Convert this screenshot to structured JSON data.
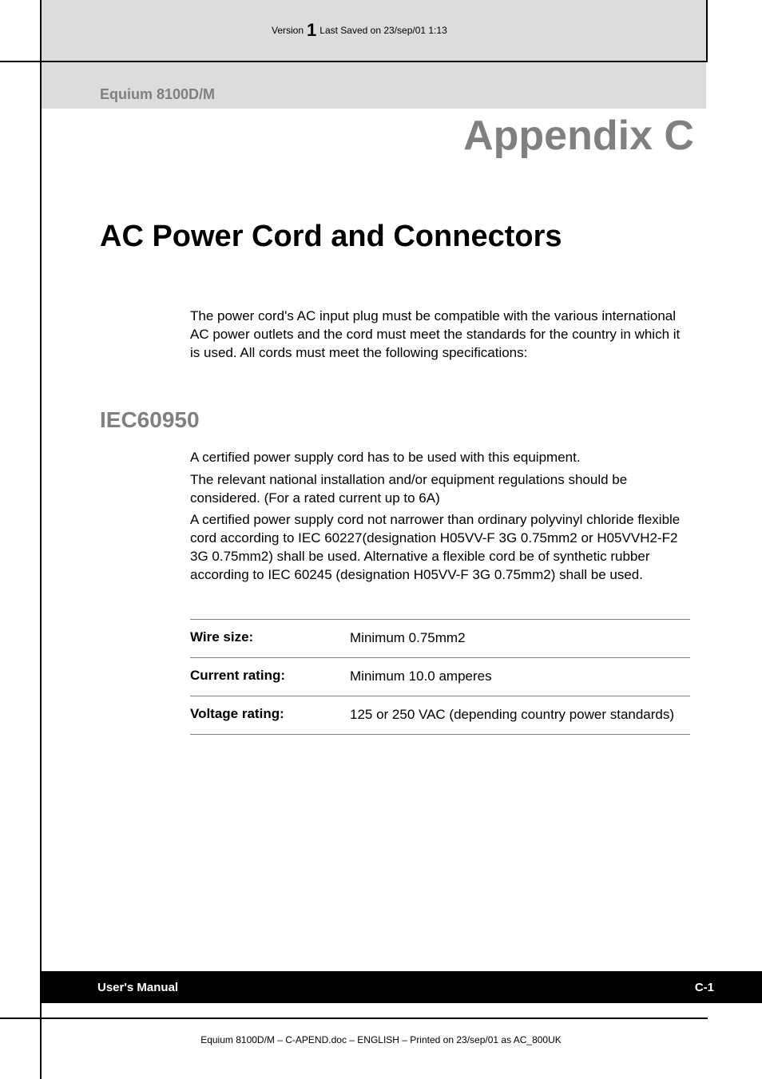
{
  "header": {
    "version_prefix": "Version",
    "version_number": "1",
    "last_saved": "Last Saved on 23/sep/01 1:13",
    "product_name": "Equium 8100D/M",
    "appendix_label": "Appendix C"
  },
  "main": {
    "title": "AC Power Cord and Connectors",
    "intro": "The power cord's AC input plug must be compatible with the various international AC power outlets and the cord must meet the standards for the country in which it is used. All cords must meet the following specifications:",
    "section_heading": "IEC60950",
    "para1": "A certified power supply cord has to be used with this equipment.",
    "para2": "The relevant national installation and/or equipment regulations should be considered. (For a rated current up to 6A)",
    "para3": "A certified power supply cord not narrower than ordinary polyvinyl chloride flexible cord according to IEC 60227(designation H05VV-F 3G 0.75mm2 or H05VVH2-F2 3G 0.75mm2) shall be used. Alternative a flexible cord be of synthetic rubber according to IEC 60245 (designation H05VV-F 3G 0.75mm2) shall be used."
  },
  "spec_table": {
    "rows": [
      {
        "label": "Wire size:",
        "value": "Minimum 0.75mm2"
      },
      {
        "label": "Current rating:",
        "value": "Minimum 10.0 amperes"
      },
      {
        "label": "Voltage rating:",
        "value": "125 or 250 VAC  (depending country power standards)"
      }
    ]
  },
  "footer": {
    "left": "User's Manual",
    "right": "C-1",
    "meta": "Equium 8100D/M  – C-APEND.doc – ENGLISH – Printed on 23/sep/01 as AC_800UK"
  },
  "colors": {
    "gray_header_bg": "#dcdcdc",
    "gray_text": "#808080",
    "black": "#000000",
    "white": "#ffffff",
    "border_gray": "#808080"
  },
  "typography": {
    "body_fontsize": 17,
    "title_fontsize": 38,
    "appendix_fontsize": 52,
    "section_heading_fontsize": 28,
    "footer_fontsize": 15,
    "meta_fontsize": 12
  }
}
